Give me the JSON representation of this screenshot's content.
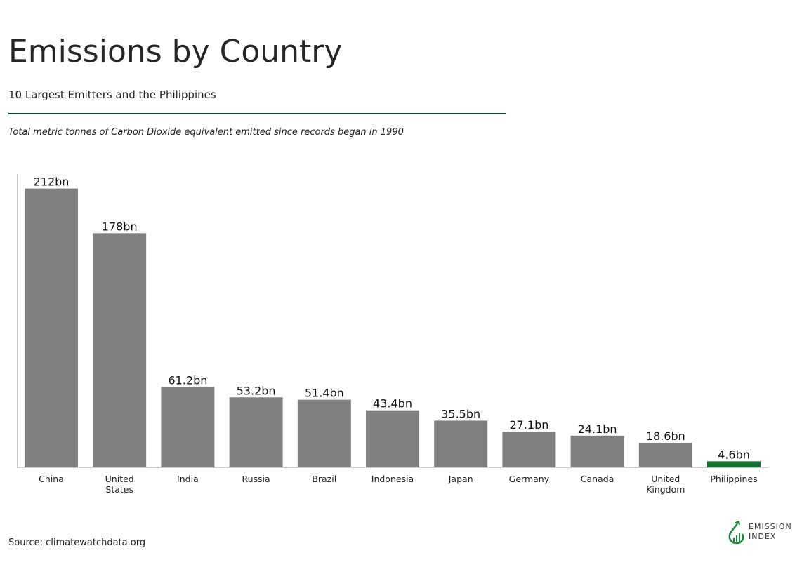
{
  "title": "Emissions by Country",
  "subtitle": "10 Largest Emitters and the Philippines",
  "note": "Total metric tonnes of Carbon Dioxide equivalent emitted since records began in 1990",
  "source": "Source: climatewatchdata.org",
  "logo": {
    "line1": "EMISSION",
    "line2": "INDEX",
    "color": "#1e8a3c"
  },
  "chart_data": {
    "type": "bar",
    "categories": [
      [
        "China"
      ],
      [
        "United",
        "States"
      ],
      [
        "India"
      ],
      [
        "Russia"
      ],
      [
        "Brazil"
      ],
      [
        "Indonesia"
      ],
      [
        "Japan"
      ],
      [
        "Germany"
      ],
      [
        "Canada"
      ],
      [
        "United",
        "Kingdom"
      ],
      [
        "Philippines"
      ]
    ],
    "values": [
      212,
      178,
      61.2,
      53.2,
      51.4,
      43.4,
      35.5,
      27.1,
      24.1,
      18.6,
      4.6
    ],
    "labels": [
      "212bn",
      "178bn",
      "61.2bn",
      "53.2bn",
      "51.4bn",
      "43.4bn",
      "35.5bn",
      "27.1bn",
      "24.1bn",
      "18.6bn",
      "4.6bn"
    ],
    "ylim": [
      0,
      223
    ],
    "grid": false,
    "colors": {
      "default": "#808080",
      "highlight": "#16722f"
    },
    "highlight": "Philippines"
  }
}
